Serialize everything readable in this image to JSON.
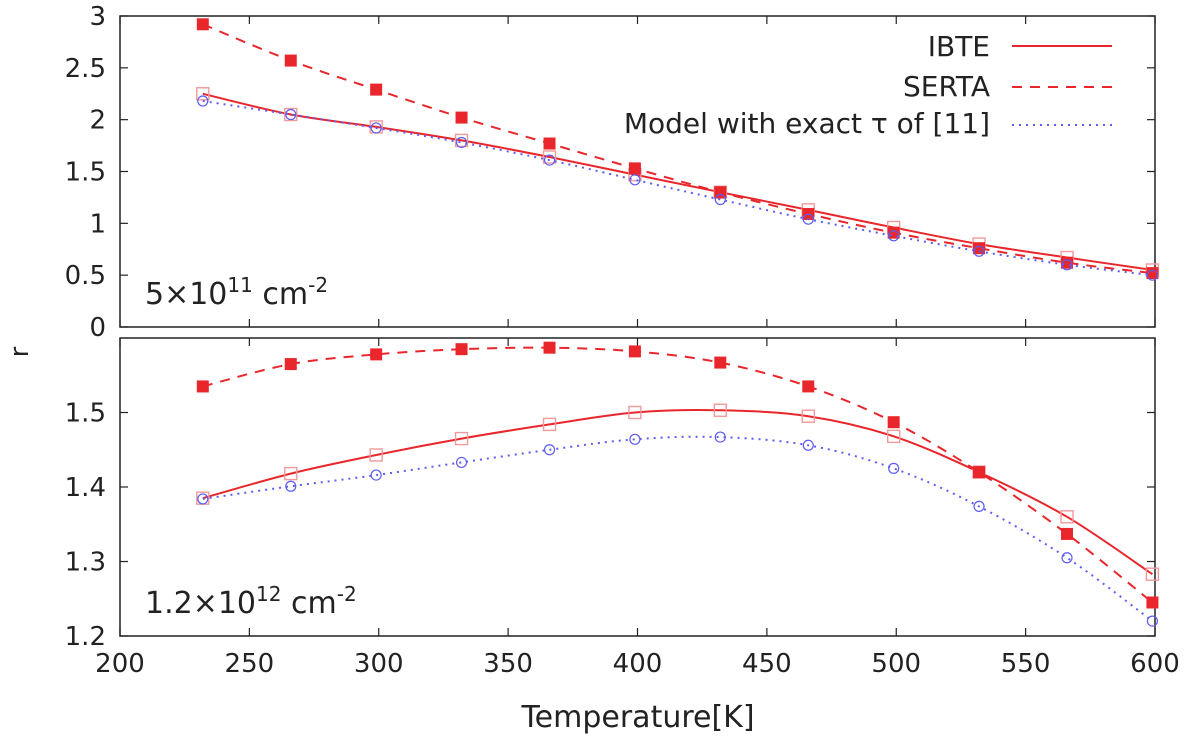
{
  "figure": {
    "xlabel": "Temperature[K]",
    "ylabel": "r",
    "x_ticks": [
      200,
      250,
      300,
      350,
      400,
      450,
      500,
      550,
      600
    ],
    "colors": {
      "ibte": "#e8262b",
      "serta": "#e8262b",
      "model": "#5d5df0",
      "frame": "#222222",
      "text": "#222222"
    }
  },
  "legend": {
    "position": "top-right",
    "entries": [
      {
        "key": "ibte",
        "label": "IBTE",
        "style": "solid"
      },
      {
        "key": "serta",
        "label": "SERTA",
        "style": "dashed"
      },
      {
        "key": "model",
        "label": "Model with exact τ of [11]",
        "style": "dotted"
      }
    ]
  },
  "chart_data": [
    {
      "type": "line",
      "panel": "top",
      "annotation": {
        "base": "5×10",
        "exp": "11",
        "unit": " cm",
        "unit_exp": "-2"
      },
      "xlim": [
        200,
        600
      ],
      "ylim": [
        0,
        3
      ],
      "y_ticks": [
        "0",
        "0.5",
        "1",
        "1.5",
        "2",
        "2.5",
        "3"
      ],
      "x": [
        232,
        266,
        299,
        332,
        366,
        399,
        432,
        466,
        499,
        532,
        566,
        599
      ],
      "series": [
        {
          "name": "IBTE",
          "key": "ibte",
          "values": [
            2.25,
            2.05,
            1.93,
            1.8,
            1.64,
            1.47,
            1.3,
            1.13,
            0.96,
            0.8,
            0.67,
            0.55
          ]
        },
        {
          "name": "SERTA",
          "key": "serta",
          "values": [
            2.92,
            2.57,
            2.29,
            2.02,
            1.77,
            1.53,
            1.3,
            1.09,
            0.91,
            0.76,
            0.62,
            0.52
          ]
        },
        {
          "name": "Model with exact τ of [11]",
          "key": "model",
          "values": [
            2.18,
            2.05,
            1.92,
            1.78,
            1.61,
            1.42,
            1.23,
            1.04,
            0.88,
            0.73,
            0.6,
            0.5
          ]
        }
      ]
    },
    {
      "type": "line",
      "panel": "bottom",
      "annotation": {
        "base": "1.2×10",
        "exp": "12",
        "unit": " cm",
        "unit_exp": "-2"
      },
      "xlim": [
        200,
        600
      ],
      "ylim": [
        1.2,
        1.6
      ],
      "y_ticks": [
        "1.2",
        "1.3",
        "1.4",
        "1.5"
      ],
      "x": [
        232,
        266,
        299,
        332,
        366,
        399,
        432,
        466,
        499,
        532,
        566,
        599
      ],
      "series": [
        {
          "name": "IBTE",
          "key": "ibte",
          "values": [
            1.385,
            1.418,
            1.443,
            1.465,
            1.484,
            1.5,
            1.503,
            1.495,
            1.468,
            1.42,
            1.36,
            1.283
          ]
        },
        {
          "name": "SERTA",
          "key": "serta",
          "values": [
            1.535,
            1.565,
            1.578,
            1.585,
            1.587,
            1.582,
            1.567,
            1.535,
            1.487,
            1.42,
            1.337,
            1.245
          ]
        },
        {
          "name": "Model with exact τ of [11]",
          "key": "model",
          "values": [
            1.384,
            1.401,
            1.416,
            1.433,
            1.45,
            1.464,
            1.467,
            1.456,
            1.425,
            1.374,
            1.305,
            1.22
          ]
        }
      ]
    }
  ]
}
